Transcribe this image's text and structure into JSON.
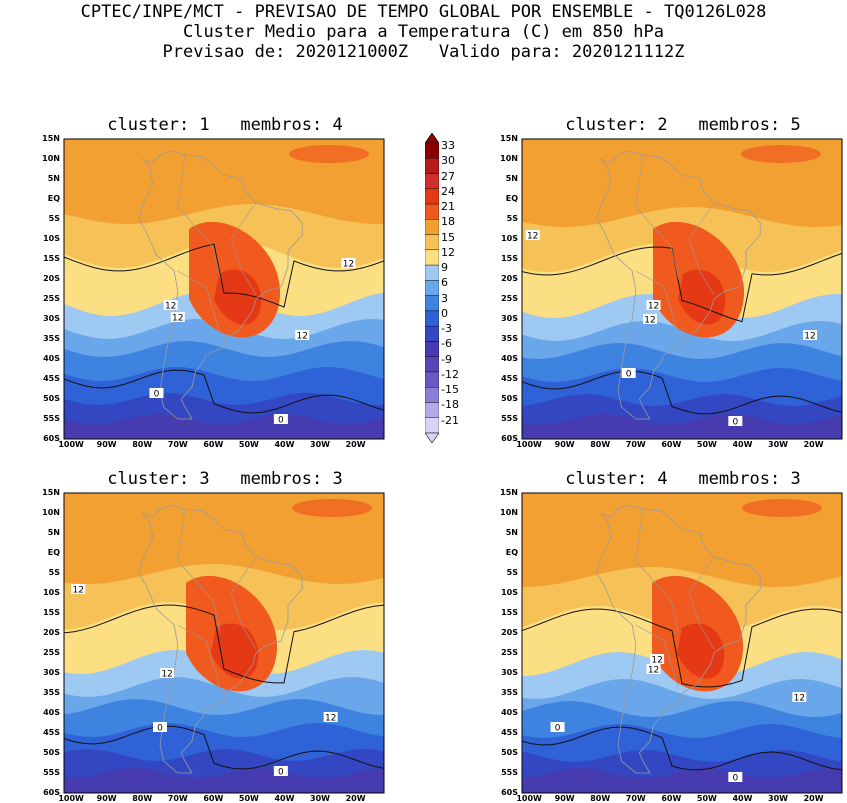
{
  "header": {
    "line1": "CPTEC/INPE/MCT - PREVISAO DE TEMPO GLOBAL POR ENSEMBLE - TQ0126L028",
    "line2": "Cluster Medio para a Temperatura (C) em 850 hPa",
    "line3": "Previsao de: 2020121000Z   Valido para: 2020121112Z"
  },
  "axes": {
    "lat_ticks": [
      "15N",
      "10N",
      "5N",
      "EQ",
      "5S",
      "10S",
      "15S",
      "20S",
      "25S",
      "30S",
      "35S",
      "40S",
      "45S",
      "50S",
      "55S",
      "60S"
    ],
    "lon_ticks": [
      "100W",
      "90W",
      "80W",
      "70W",
      "60W",
      "50W",
      "40W",
      "30W",
      "20W"
    ]
  },
  "colorbar": {
    "labels": [
      "33",
      "30",
      "27",
      "24",
      "21",
      "18",
      "15",
      "12",
      "9",
      "6",
      "3",
      "0",
      "-3",
      "-6",
      "-9",
      "-12",
      "-15",
      "-18",
      "-21"
    ],
    "colors": [
      "#8b0000",
      "#b71c1c",
      "#d32f2f",
      "#e53916",
      "#f05a1e",
      "#f3a033",
      "#f6c257",
      "#fcdf83",
      "#9ec9f2",
      "#6aa7ea",
      "#3e83e0",
      "#2f62d6",
      "#3447c2",
      "#473bb0",
      "#5a45b8",
      "#6c57c4",
      "#8a7fd6",
      "#b3aae8",
      "#d8d2f6"
    ]
  },
  "panels": [
    {
      "title": "cluster: 1   membros: 4",
      "contour_labels": [
        {
          "text": "12",
          "lon": -22,
          "lat": -16
        },
        {
          "text": "12",
          "lon": -72,
          "lat": -26.5
        },
        {
          "text": "12",
          "lon": -70,
          "lat": -29.5
        },
        {
          "text": "12",
          "lon": -35,
          "lat": -34
        },
        {
          "text": "0",
          "lon": -76,
          "lat": -48.5
        },
        {
          "text": "0",
          "lon": -41,
          "lat": -55
        }
      ]
    },
    {
      "title": "cluster: 2   membros: 5",
      "contour_labels": [
        {
          "text": "12",
          "lon": -99,
          "lat": -9
        },
        {
          "text": "12",
          "lon": -65,
          "lat": -26.5
        },
        {
          "text": "12",
          "lon": -66,
          "lat": -30
        },
        {
          "text": "12",
          "lon": -21,
          "lat": -34
        },
        {
          "text": "0",
          "lon": -72,
          "lat": -43.5
        },
        {
          "text": "0",
          "lon": -42,
          "lat": -55.5
        }
      ]
    },
    {
      "title": "cluster: 3   membros: 3",
      "contour_labels": [
        {
          "text": "12",
          "lon": -98,
          "lat": -9
        },
        {
          "text": "12",
          "lon": -73,
          "lat": -30
        },
        {
          "text": "12",
          "lon": -27,
          "lat": -41
        },
        {
          "text": "0",
          "lon": -75,
          "lat": -43.5
        },
        {
          "text": "0",
          "lon": -41,
          "lat": -54.5
        }
      ]
    },
    {
      "title": "cluster: 4   membros: 3",
      "contour_labels": [
        {
          "text": "12",
          "lon": -64,
          "lat": -26.5
        },
        {
          "text": "12",
          "lon": -65,
          "lat": -29
        },
        {
          "text": "12",
          "lon": -24,
          "lat": -36
        },
        {
          "text": "0",
          "lon": -92,
          "lat": -43.5
        },
        {
          "text": "0",
          "lon": -42,
          "lat": -56
        }
      ]
    }
  ]
}
